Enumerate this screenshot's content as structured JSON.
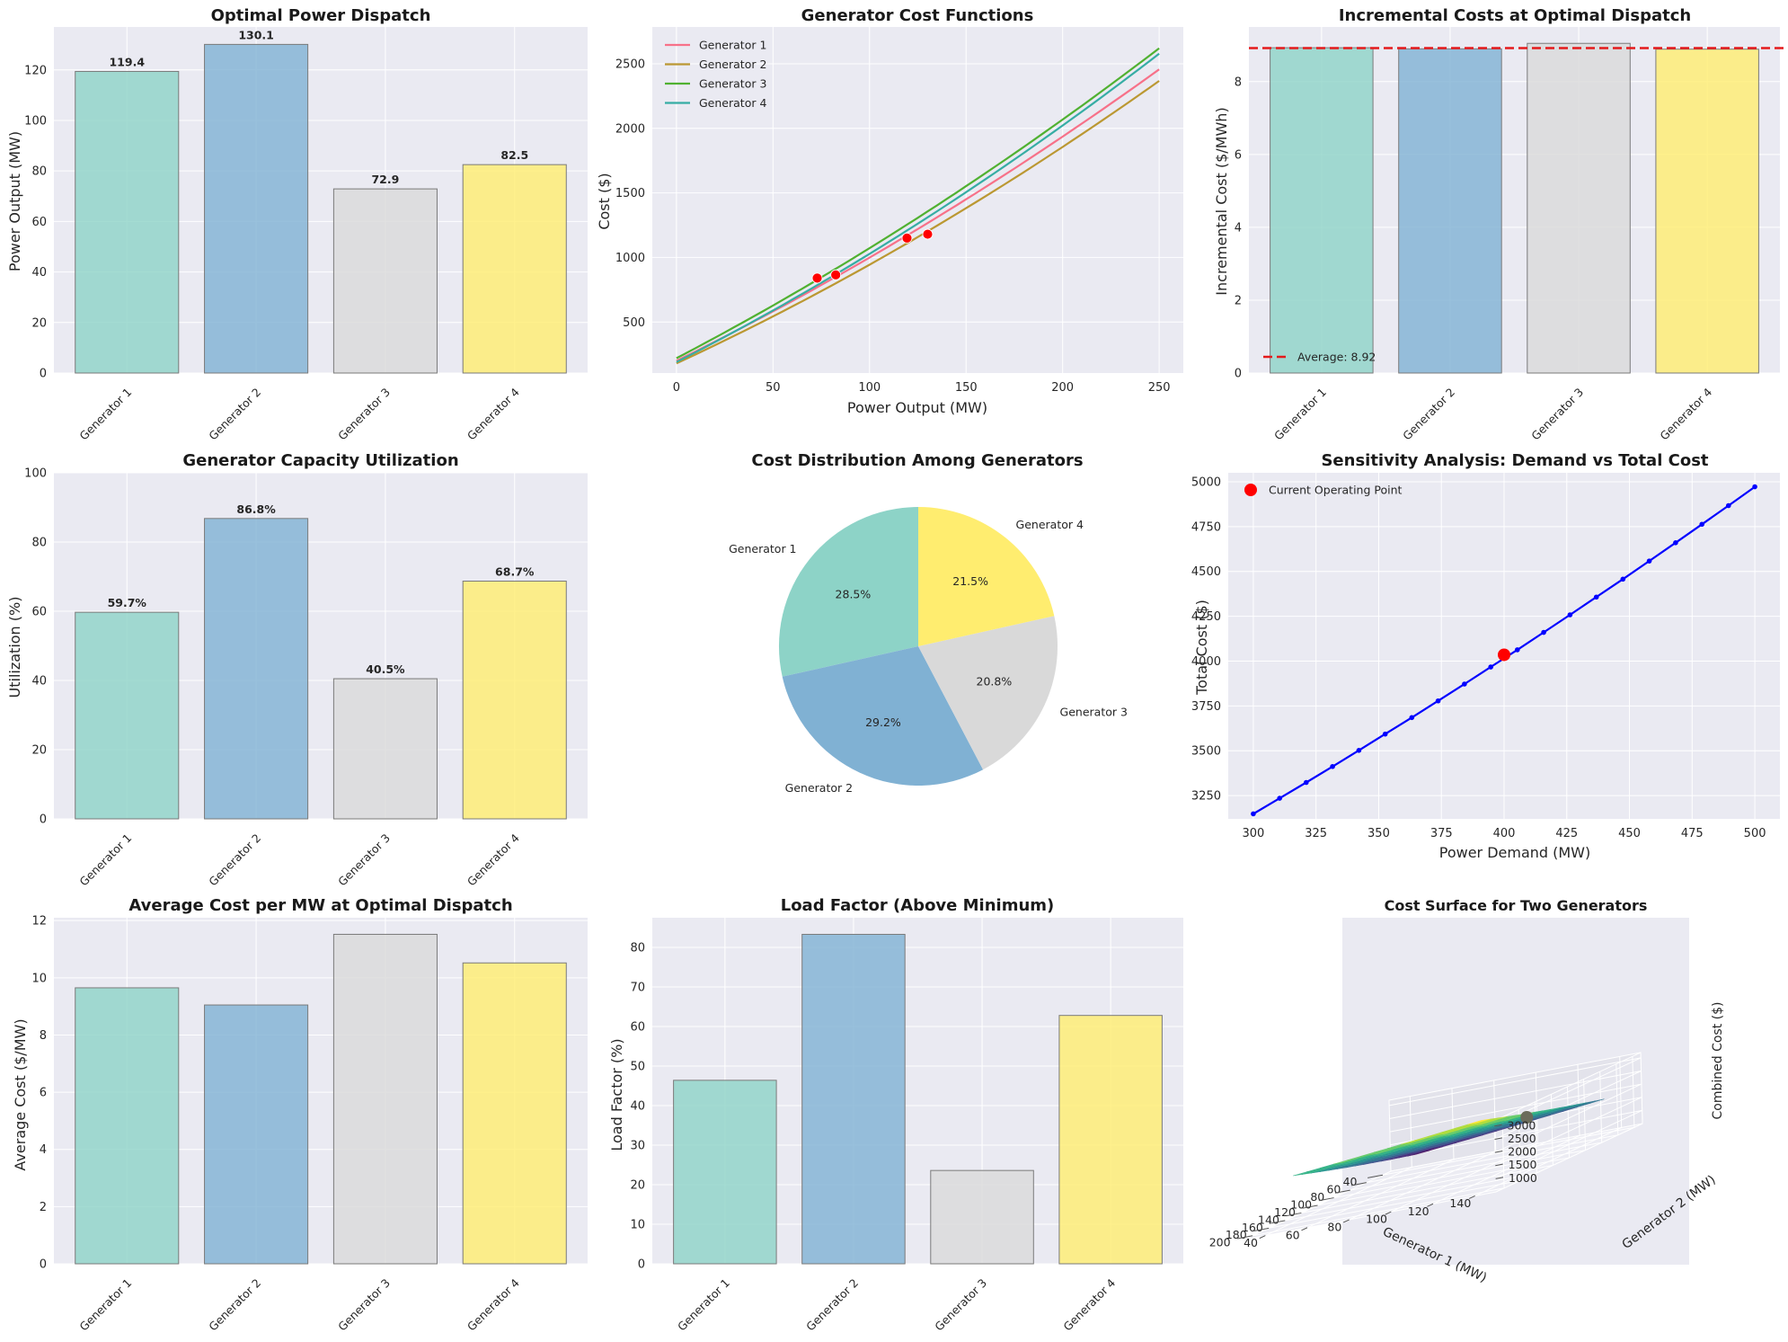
{
  "generators": [
    "Generator 1",
    "Generator 2",
    "Generator 3",
    "Generator 4"
  ],
  "colors": {
    "bars": [
      "#8dd3c7",
      "#80b1d3",
      "#d9d9d9",
      "#ffed6f"
    ],
    "curves": [
      "#f77189",
      "#bb9832",
      "#50b131",
      "#36ada4"
    ],
    "bar_edge": "#7a7a7a",
    "panel_bg": "#eaeaf2",
    "grid": "#ffffff",
    "red": "#ff0000",
    "blue": "#0000ff",
    "dashed_red": "#e41a1c"
  },
  "chart_data": [
    {
      "id": "dispatch",
      "type": "bar",
      "title": "Optimal Power Dispatch",
      "xlabel": "",
      "ylabel": "Power Output (MW)",
      "categories": [
        "Generator 1",
        "Generator 2",
        "Generator 3",
        "Generator 4"
      ],
      "values": [
        119.4,
        130.1,
        72.9,
        82.5
      ],
      "value_labels": [
        "119.4",
        "130.1",
        "72.9",
        "82.5"
      ],
      "ylim": [
        0,
        137
      ],
      "yticks": [
        0,
        20,
        40,
        60,
        80,
        100,
        120
      ]
    },
    {
      "id": "costfn",
      "type": "line",
      "title": "Generator Cost Functions",
      "xlabel": "Power Output (MW)",
      "ylabel": "Cost ($)",
      "xlim": [
        -12.5,
        262.5
      ],
      "ylim": [
        105,
        2785
      ],
      "xticks": [
        0,
        50,
        100,
        150,
        200,
        250
      ],
      "yticks": [
        500,
        1000,
        1500,
        2000,
        2500
      ],
      "series": [
        {
          "name": "Generator 1",
          "a": 200,
          "b": 7.3,
          "c": 0.0069
        },
        {
          "name": "Generator 2",
          "a": 180,
          "b": 6.9,
          "c": 0.0074
        },
        {
          "name": "Generator 3",
          "a": 220,
          "b": 7.8,
          "c": 0.0072
        },
        {
          "name": "Generator 4",
          "a": 190,
          "b": 7.6,
          "c": 0.0078
        }
      ],
      "operating_points": [
        {
          "x": 119.4,
          "y": 1150
        },
        {
          "x": 130.1,
          "y": 1180
        },
        {
          "x": 72.9,
          "y": 840
        },
        {
          "x": 82.5,
          "y": 865
        }
      ]
    },
    {
      "id": "incremental",
      "type": "bar",
      "title": "Incremental Costs at Optimal Dispatch",
      "xlabel": "",
      "ylabel": "Incremental Cost ($/MWh)",
      "categories": [
        "Generator 1",
        "Generator 2",
        "Generator 3",
        "Generator 4"
      ],
      "values": [
        8.93,
        8.9,
        9.05,
        8.89
      ],
      "average": 8.92,
      "legend_label": "Average: 8.92",
      "ylim": [
        0,
        9.5
      ],
      "yticks": [
        0,
        2,
        4,
        6,
        8
      ]
    },
    {
      "id": "utilization",
      "type": "bar",
      "title": "Generator Capacity Utilization",
      "xlabel": "",
      "ylabel": "Utilization (%)",
      "categories": [
        "Generator 1",
        "Generator 2",
        "Generator 3",
        "Generator 4"
      ],
      "values": [
        59.7,
        86.8,
        40.5,
        68.7
      ],
      "value_labels": [
        "59.7%",
        "86.8%",
        "40.5%",
        "68.7%"
      ],
      "ylim": [
        0,
        100
      ],
      "yticks": [
        0,
        20,
        40,
        60,
        80,
        100
      ]
    },
    {
      "id": "costpie",
      "type": "pie",
      "title": "Cost Distribution Among Generators",
      "labels": [
        "Generator 1",
        "Generator 2",
        "Generator 3",
        "Generator 4"
      ],
      "values": [
        28.5,
        29.2,
        20.8,
        21.5
      ],
      "pct_labels": [
        "28.5%",
        "29.2%",
        "20.8%",
        "21.5%"
      ]
    },
    {
      "id": "sensitivity",
      "type": "line",
      "title": "Sensitivity Analysis: Demand vs Total Cost",
      "xlabel": "Power Demand (MW)",
      "ylabel": "Total Cost ($)",
      "xlim": [
        290,
        510
      ],
      "ylim": [
        3120,
        5050
      ],
      "xticks": [
        300,
        325,
        350,
        375,
        400,
        425,
        450,
        475,
        500
      ],
      "yticks": [
        3250,
        3500,
        3750,
        4000,
        4250,
        4500,
        4750,
        5000
      ],
      "x": [
        300,
        310.5,
        321.1,
        331.6,
        342.1,
        352.6,
        363.2,
        373.7,
        384.2,
        394.7,
        405.3,
        415.8,
        426.3,
        436.8,
        447.4,
        457.9,
        468.4,
        478.9,
        489.5,
        500
      ],
      "y": [
        3148,
        3235,
        3323,
        3412,
        3502,
        3593,
        3685,
        3778,
        3872,
        3967,
        4063,
        4160,
        4258,
        4357,
        4457,
        4558,
        4660,
        4763,
        4867,
        4972
      ],
      "current_point": {
        "x": 400,
        "y": 4035
      },
      "legend_label": "Current Operating Point"
    },
    {
      "id": "avgcost",
      "type": "bar",
      "title": "Average Cost per MW at Optimal Dispatch",
      "xlabel": "",
      "ylabel": "Average Cost ($/MW)",
      "categories": [
        "Generator 1",
        "Generator 2",
        "Generator 3",
        "Generator 4"
      ],
      "values": [
        9.65,
        9.05,
        11.52,
        10.52
      ],
      "ylim": [
        0,
        12.1
      ],
      "yticks": [
        0,
        2,
        4,
        6,
        8,
        10,
        12
      ]
    },
    {
      "id": "loadfactor",
      "type": "bar",
      "title": "Load Factor (Above Minimum)",
      "xlabel": "",
      "ylabel": "Load Factor (%)",
      "categories": [
        "Generator 1",
        "Generator 2",
        "Generator 3",
        "Generator 4"
      ],
      "values": [
        46.4,
        83.3,
        23.6,
        62.8
      ],
      "ylim": [
        0,
        87.5
      ],
      "yticks": [
        0,
        10,
        20,
        30,
        40,
        50,
        60,
        70,
        80
      ]
    },
    {
      "id": "surface",
      "type": "surface3d",
      "title": "Cost Surface for Two Generators",
      "xlabel": "Generator 1 (MW)",
      "ylabel": "Generator 2 (MW)",
      "zlabel": "Combined Cost ($)",
      "xticks": [
        40,
        60,
        80,
        100,
        120,
        140,
        160,
        180,
        200
      ],
      "yticks": [
        40,
        60,
        80,
        100,
        120,
        140
      ],
      "zticks": [
        1000,
        1500,
        2000,
        2500,
        3000
      ],
      "xlim": [
        30,
        210
      ],
      "ylim": [
        30,
        150
      ],
      "zlim": [
        500,
        3200
      ],
      "marker": {
        "x": 119.4,
        "y": 130.1,
        "z": 2330
      }
    }
  ]
}
